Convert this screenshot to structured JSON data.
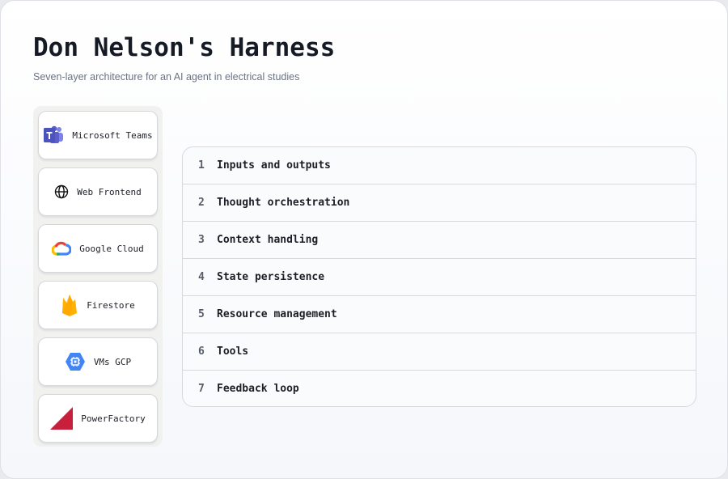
{
  "header": {
    "title": "Don Nelson's Harness",
    "subtitle": "Seven-layer architecture for an AI agent in electrical studies"
  },
  "services": [
    {
      "label": "Microsoft Teams",
      "icon": "microsoft-teams-icon"
    },
    {
      "label": "Web Frontend",
      "icon": "globe-icon"
    },
    {
      "label": "Google Cloud",
      "icon": "google-cloud-icon"
    },
    {
      "label": "Firestore",
      "icon": "firestore-icon"
    },
    {
      "label": "VMs GCP",
      "icon": "compute-engine-icon"
    },
    {
      "label": "PowerFactory",
      "icon": "powerfactory-icon"
    }
  ],
  "layers": [
    {
      "num": "1",
      "label": "Inputs and outputs"
    },
    {
      "num": "2",
      "label": "Thought orchestration"
    },
    {
      "num": "3",
      "label": "Context handling"
    },
    {
      "num": "4",
      "label": "State persistence"
    },
    {
      "num": "5",
      "label": "Resource management"
    },
    {
      "num": "6",
      "label": "Tools"
    },
    {
      "num": "7",
      "label": "Feedback loop"
    }
  ],
  "colors": {
    "teams": "#5b5fc7",
    "firestore": "#ffb300",
    "gcp_blue": "#4285f4",
    "powerfactory": "#c8203c"
  }
}
